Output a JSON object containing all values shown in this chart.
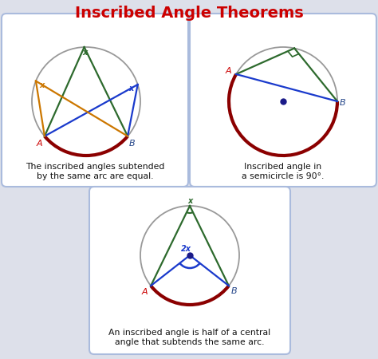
{
  "title": "Inscribed Angle Theorems",
  "title_color": "#cc0000",
  "title_fontsize": 14,
  "bg_color": "#dde0ea",
  "box_bg": "#ffffff",
  "box_edge": "#aabbdd",
  "circle_color": "#999999",
  "arc_color": "#8b0000",
  "green_line": "#2d6a2d",
  "blue_line": "#1a3acc",
  "orange_line": "#cc7700",
  "dot_color": "#1a1a88",
  "label1": "The inscribed angles subtended\nby the same arc are equal.",
  "label2": "Inscribed angle in\na semicircle is 90°.",
  "label3": "An inscribed angle is half of a central\nangle that subtends the same arc."
}
